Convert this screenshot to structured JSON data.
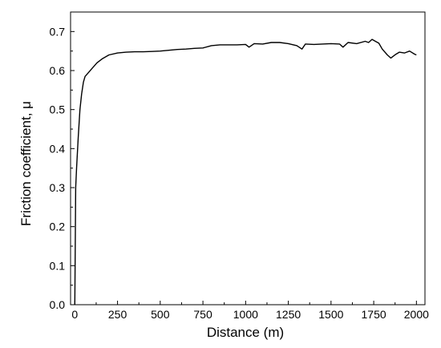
{
  "chart_data": {
    "type": "line",
    "title": "",
    "xlabel": "Distance (m)",
    "ylabel": "Friction coefficient, μ",
    "xlim": [
      -25,
      2050
    ],
    "ylim": [
      0.0,
      0.75
    ],
    "x_ticks": [
      0,
      250,
      500,
      750,
      1000,
      1250,
      1500,
      1750,
      2000
    ],
    "x_tick_labels": [
      "0",
      "250",
      "500",
      "750",
      "1000",
      "1250",
      "1500",
      "1750",
      "2000"
    ],
    "y_ticks": [
      0.0,
      0.1,
      0.2,
      0.3,
      0.4,
      0.5,
      0.6,
      0.7
    ],
    "y_tick_labels": [
      "0.0",
      "0.1",
      "0.2",
      "0.3",
      "0.4",
      "0.5",
      "0.6",
      "0.7"
    ],
    "grid": false,
    "legend": "none",
    "series": [
      {
        "color": "#000000",
        "x": [
          0,
          5,
          10,
          20,
          30,
          40,
          50,
          60,
          80,
          100,
          130,
          160,
          200,
          250,
          300,
          350,
          400,
          450,
          500,
          550,
          600,
          650,
          700,
          750,
          800,
          850,
          900,
          950,
          1000,
          1020,
          1050,
          1100,
          1150,
          1200,
          1250,
          1300,
          1330,
          1350,
          1400,
          1450,
          1500,
          1550,
          1570,
          1600,
          1650,
          1700,
          1720,
          1740,
          1760,
          1780,
          1800,
          1830,
          1850,
          1880,
          1900,
          1930,
          1960,
          1990,
          2000
        ],
        "y": [
          0.0,
          0.3,
          0.35,
          0.43,
          0.5,
          0.54,
          0.57,
          0.585,
          0.595,
          0.605,
          0.62,
          0.63,
          0.64,
          0.645,
          0.647,
          0.648,
          0.648,
          0.649,
          0.65,
          0.652,
          0.654,
          0.655,
          0.657,
          0.658,
          0.664,
          0.666,
          0.666,
          0.666,
          0.667,
          0.66,
          0.669,
          0.668,
          0.672,
          0.672,
          0.669,
          0.664,
          0.655,
          0.668,
          0.667,
          0.668,
          0.669,
          0.668,
          0.66,
          0.672,
          0.669,
          0.675,
          0.672,
          0.68,
          0.675,
          0.67,
          0.655,
          0.64,
          0.632,
          0.642,
          0.647,
          0.645,
          0.65,
          0.642,
          0.64
        ]
      }
    ]
  }
}
